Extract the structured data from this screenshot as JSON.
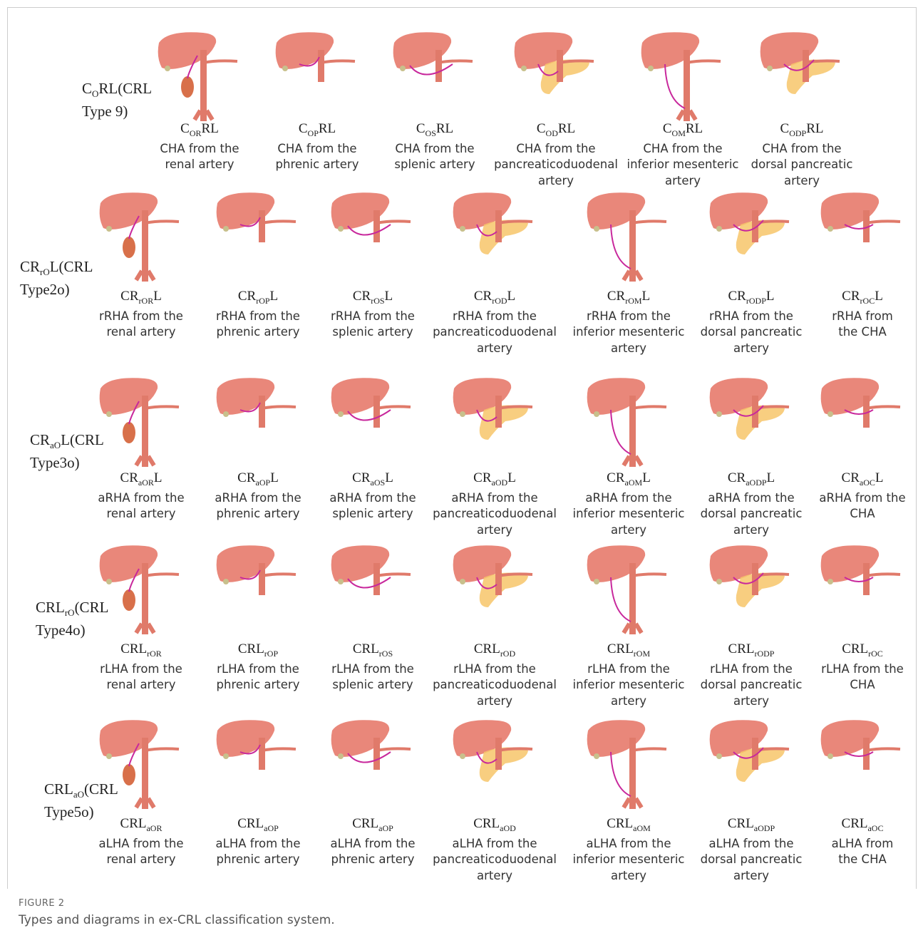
{
  "rows": [
    {
      "label": [
        "C",
        "O",
        "RL(CRL"
      ],
      "label2": "Type 9)",
      "items": [
        {
          "code": [
            "C",
            "OR",
            "RL"
          ],
          "desc": [
            "CHA from the",
            "renal artery"
          ]
        },
        {
          "code": [
            "C",
            "OP",
            "RL"
          ],
          "desc": [
            "CHA from the",
            "phrenic artery"
          ]
        },
        {
          "code": [
            "C",
            "OS",
            "RL"
          ],
          "desc": [
            "CHA from the",
            "splenic artery"
          ]
        },
        {
          "code": [
            "C",
            "OD",
            "RL"
          ],
          "desc": [
            "CHA from the",
            "pancreaticoduodenal",
            "artery"
          ]
        },
        {
          "code": [
            "C",
            "OM",
            "RL"
          ],
          "desc": [
            "CHA from the",
            "inferior mesenteric",
            "artery"
          ]
        },
        {
          "code": [
            "C",
            "ODP",
            "RL"
          ],
          "desc": [
            "CHA from the",
            "dorsal pancreatic",
            "artery"
          ]
        }
      ]
    },
    {
      "label": [
        "CR",
        "rO",
        "L(CRL"
      ],
      "label2": "Type2o)",
      "items": [
        {
          "code": [
            "CR",
            "rOR",
            "L"
          ],
          "desc": [
            "rRHA from the",
            "renal artery"
          ]
        },
        {
          "code": [
            "CR",
            "rOP",
            "L"
          ],
          "desc": [
            "rRHA from the",
            "phrenic artery"
          ]
        },
        {
          "code": [
            "CR",
            "rOS",
            "L"
          ],
          "desc": [
            "rRHA from the",
            "splenic artery"
          ]
        },
        {
          "code": [
            "CR",
            "rOD",
            "L"
          ],
          "desc": [
            "rRHA from the",
            "pancreaticoduodenal",
            "artery"
          ]
        },
        {
          "code": [
            "CR",
            "rOM",
            "L"
          ],
          "desc": [
            "rRHA from the",
            "inferior mesenteric",
            "artery"
          ]
        },
        {
          "code": [
            "CR",
            "rODP",
            "L"
          ],
          "desc": [
            "rRHA from the",
            "dorsal pancreatic",
            "artery"
          ]
        },
        {
          "code": [
            "CR",
            "rOC",
            "L"
          ],
          "desc": [
            "rRHA from",
            "the CHA"
          ]
        }
      ]
    },
    {
      "label": [
        "CR",
        "aO",
        "L(CRL"
      ],
      "label2": "Type3o)",
      "items": [
        {
          "code": [
            "CR",
            "aOR",
            "L"
          ],
          "desc": [
            "aRHA from the",
            "renal artery"
          ]
        },
        {
          "code": [
            "CR",
            "aOP",
            "L"
          ],
          "desc": [
            "aRHA from the",
            "phrenic artery"
          ]
        },
        {
          "code": [
            "CR",
            "aOS",
            "L"
          ],
          "desc": [
            "aRHA from the",
            "splenic artery"
          ]
        },
        {
          "code": [
            "CR",
            "aOD",
            "L"
          ],
          "desc": [
            "aRHA from the",
            "pancreaticoduodenal",
            "artery"
          ]
        },
        {
          "code": [
            "CR",
            "aOM",
            "L"
          ],
          "desc": [
            "aRHA from the",
            "inferior mesenteric",
            "artery"
          ]
        },
        {
          "code": [
            "CR",
            "aODP",
            "L"
          ],
          "desc": [
            "aRHA from the",
            "dorsal pancreatic",
            "artery"
          ]
        },
        {
          "code": [
            "CR",
            "aOC",
            "L"
          ],
          "desc": [
            "aRHA from the",
            "CHA"
          ]
        }
      ]
    },
    {
      "label": [
        "CRL",
        "rO",
        "(CRL"
      ],
      "label2": "Type4o)",
      "items": [
        {
          "code": [
            "CRL",
            "rOR"
          ],
          "desc": [
            "rLHA from the",
            "renal artery"
          ]
        },
        {
          "code": [
            "CRL",
            "rOP"
          ],
          "desc": [
            "rLHA from the",
            "phrenic artery"
          ]
        },
        {
          "code": [
            "CRL",
            "rOS"
          ],
          "desc": [
            "rLHA from the",
            "splenic artery"
          ]
        },
        {
          "code": [
            "CRL",
            "rOD"
          ],
          "desc": [
            "rLHA from the",
            "pancreaticoduodenal",
            "artery"
          ]
        },
        {
          "code": [
            "CRL",
            "rOM"
          ],
          "desc": [
            "rLHA from the",
            "inferior mesenteric",
            "artery"
          ]
        },
        {
          "code": [
            "CRL",
            "rODP"
          ],
          "desc": [
            "rLHA from the",
            "dorsal pancreatic",
            "artery"
          ]
        },
        {
          "code": [
            "CRL",
            "rOC"
          ],
          "desc": [
            "rLHA from the",
            "CHA"
          ]
        }
      ]
    },
    {
      "label": [
        "CRL",
        "aO",
        "(CRL"
      ],
      "label2": "Type5o)",
      "items": [
        {
          "code": [
            "CRL",
            "aOR"
          ],
          "desc": [
            "aLHA from the",
            "renal artery"
          ]
        },
        {
          "code": [
            "CRL",
            "aOP"
          ],
          "desc": [
            "aLHA from the",
            "phrenic artery"
          ]
        },
        {
          "code": [
            "CRL",
            "aOP"
          ],
          "desc": [
            "aLHA from the",
            "phrenic artery"
          ]
        },
        {
          "code": [
            "CRL",
            "aOD"
          ],
          "desc": [
            "aLHA from the",
            "pancreaticoduodenal",
            "artery"
          ]
        },
        {
          "code": [
            "CRL",
            "aOM"
          ],
          "desc": [
            "aLHA from the",
            "inferior mesenteric",
            "artery"
          ]
        },
        {
          "code": [
            "CRL",
            "aODP"
          ],
          "desc": [
            "aLHA from the",
            "dorsal pancreatic",
            "artery"
          ]
        },
        {
          "code": [
            "CRL",
            "aOC"
          ],
          "desc": [
            "aLHA from",
            "the CHA"
          ]
        }
      ]
    }
  ],
  "caption": {
    "label": "FIGURE 2",
    "text": "Types and diagrams in ex-CRL classification system."
  }
}
